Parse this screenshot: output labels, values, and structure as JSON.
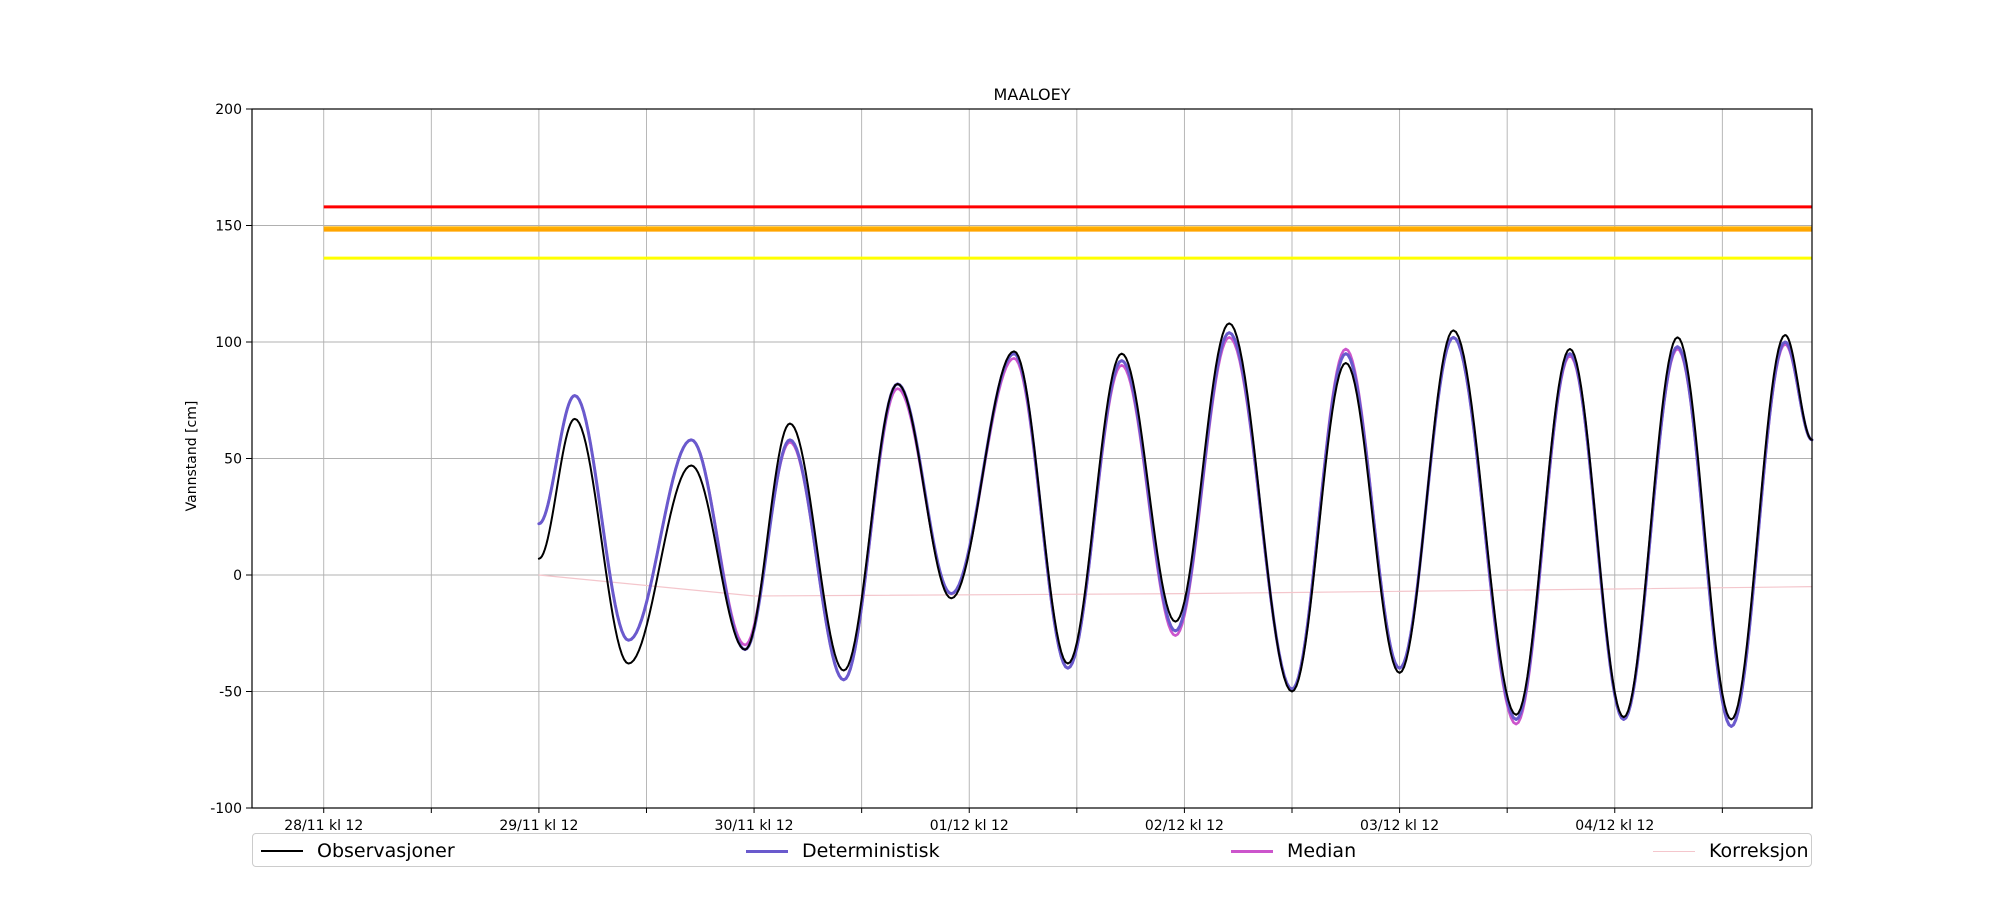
{
  "chart_data": {
    "type": "line",
    "title": "MAALOEY",
    "ylabel": "Vannstand [cm]",
    "xlabel": "",
    "ylim": [
      -100,
      200
    ],
    "yticks": [
      -100,
      -50,
      0,
      50,
      100,
      150,
      200
    ],
    "xlim_hours_from_start": [
      -4,
      140
    ],
    "x_start_label": "28/11 kl 12",
    "xtick_labels": [
      "28/11 kl 12",
      "29/11 kl 12",
      "30/11 kl 12",
      "01/12 kl 12",
      "02/12 kl 12",
      "03/12 kl 12",
      "04/12 kl 12"
    ],
    "xtick_hours": [
      0,
      24,
      48,
      72,
      96,
      120,
      144
    ],
    "grid": true,
    "legend_position": "bottom",
    "threshold_lines": [
      {
        "value": 158,
        "color": "#ff0000"
      },
      {
        "value": 149,
        "color": "#ffb000"
      },
      {
        "value": 148,
        "color": "#ffa500"
      },
      {
        "value": 136,
        "color": "#ffff00"
      }
    ],
    "series": [
      {
        "name": "Observasjoner",
        "color": "#000000",
        "points": [
          [
            24,
            7
          ],
          [
            28,
            67
          ],
          [
            34,
            -38
          ],
          [
            41,
            47
          ],
          [
            47,
            -32
          ],
          [
            52,
            65
          ],
          [
            58,
            -41
          ],
          [
            64,
            82
          ],
          [
            70,
            -10
          ],
          [
            77,
            96
          ],
          [
            83,
            -38
          ],
          [
            89,
            95
          ],
          [
            95,
            -20
          ],
          [
            101,
            108
          ],
          [
            108,
            -50
          ],
          [
            114,
            91
          ],
          [
            120,
            -42
          ],
          [
            126,
            105
          ],
          [
            133,
            -60
          ],
          [
            139,
            97
          ],
          [
            145,
            -61
          ],
          [
            151,
            102
          ],
          [
            157,
            -62
          ],
          [
            163,
            103
          ],
          [
            166,
            58
          ]
        ]
      },
      {
        "name": "Deterministisk",
        "color": "#6a5acd",
        "points": [
          [
            24,
            22
          ],
          [
            28,
            77
          ],
          [
            34,
            -28
          ],
          [
            41,
            58
          ],
          [
            47,
            -32
          ],
          [
            52,
            58
          ],
          [
            58,
            -45
          ],
          [
            64,
            82
          ],
          [
            70,
            -8
          ],
          [
            77,
            95
          ],
          [
            83,
            -40
          ],
          [
            89,
            92
          ],
          [
            95,
            -24
          ],
          [
            101,
            104
          ],
          [
            108,
            -49
          ],
          [
            114,
            95
          ],
          [
            120,
            -40
          ],
          [
            126,
            102
          ],
          [
            133,
            -62
          ],
          [
            139,
            95
          ],
          [
            145,
            -62
          ],
          [
            151,
            98
          ],
          [
            157,
            -65
          ],
          [
            163,
            100
          ],
          [
            166,
            58
          ]
        ]
      },
      {
        "name": "Median",
        "color": "#cc55cc",
        "points": [
          [
            24,
            22
          ],
          [
            28,
            77
          ],
          [
            34,
            -28
          ],
          [
            41,
            58
          ],
          [
            47,
            -30
          ],
          [
            52,
            57
          ],
          [
            58,
            -45
          ],
          [
            64,
            80
          ],
          [
            70,
            -8
          ],
          [
            77,
            93
          ],
          [
            83,
            -40
          ],
          [
            89,
            90
          ],
          [
            95,
            -26
          ],
          [
            101,
            102
          ],
          [
            108,
            -49
          ],
          [
            114,
            97
          ],
          [
            120,
            -40
          ],
          [
            126,
            102
          ],
          [
            133,
            -64
          ],
          [
            139,
            94
          ],
          [
            145,
            -62
          ],
          [
            151,
            97
          ],
          [
            157,
            -65
          ],
          [
            163,
            99
          ],
          [
            166,
            58
          ]
        ]
      },
      {
        "name": "Korreksjon",
        "color": "#f4c6cc",
        "points": [
          [
            24,
            0
          ],
          [
            48,
            -9
          ],
          [
            96,
            -8
          ],
          [
            144,
            -6
          ],
          [
            166,
            -5
          ]
        ]
      }
    ]
  }
}
